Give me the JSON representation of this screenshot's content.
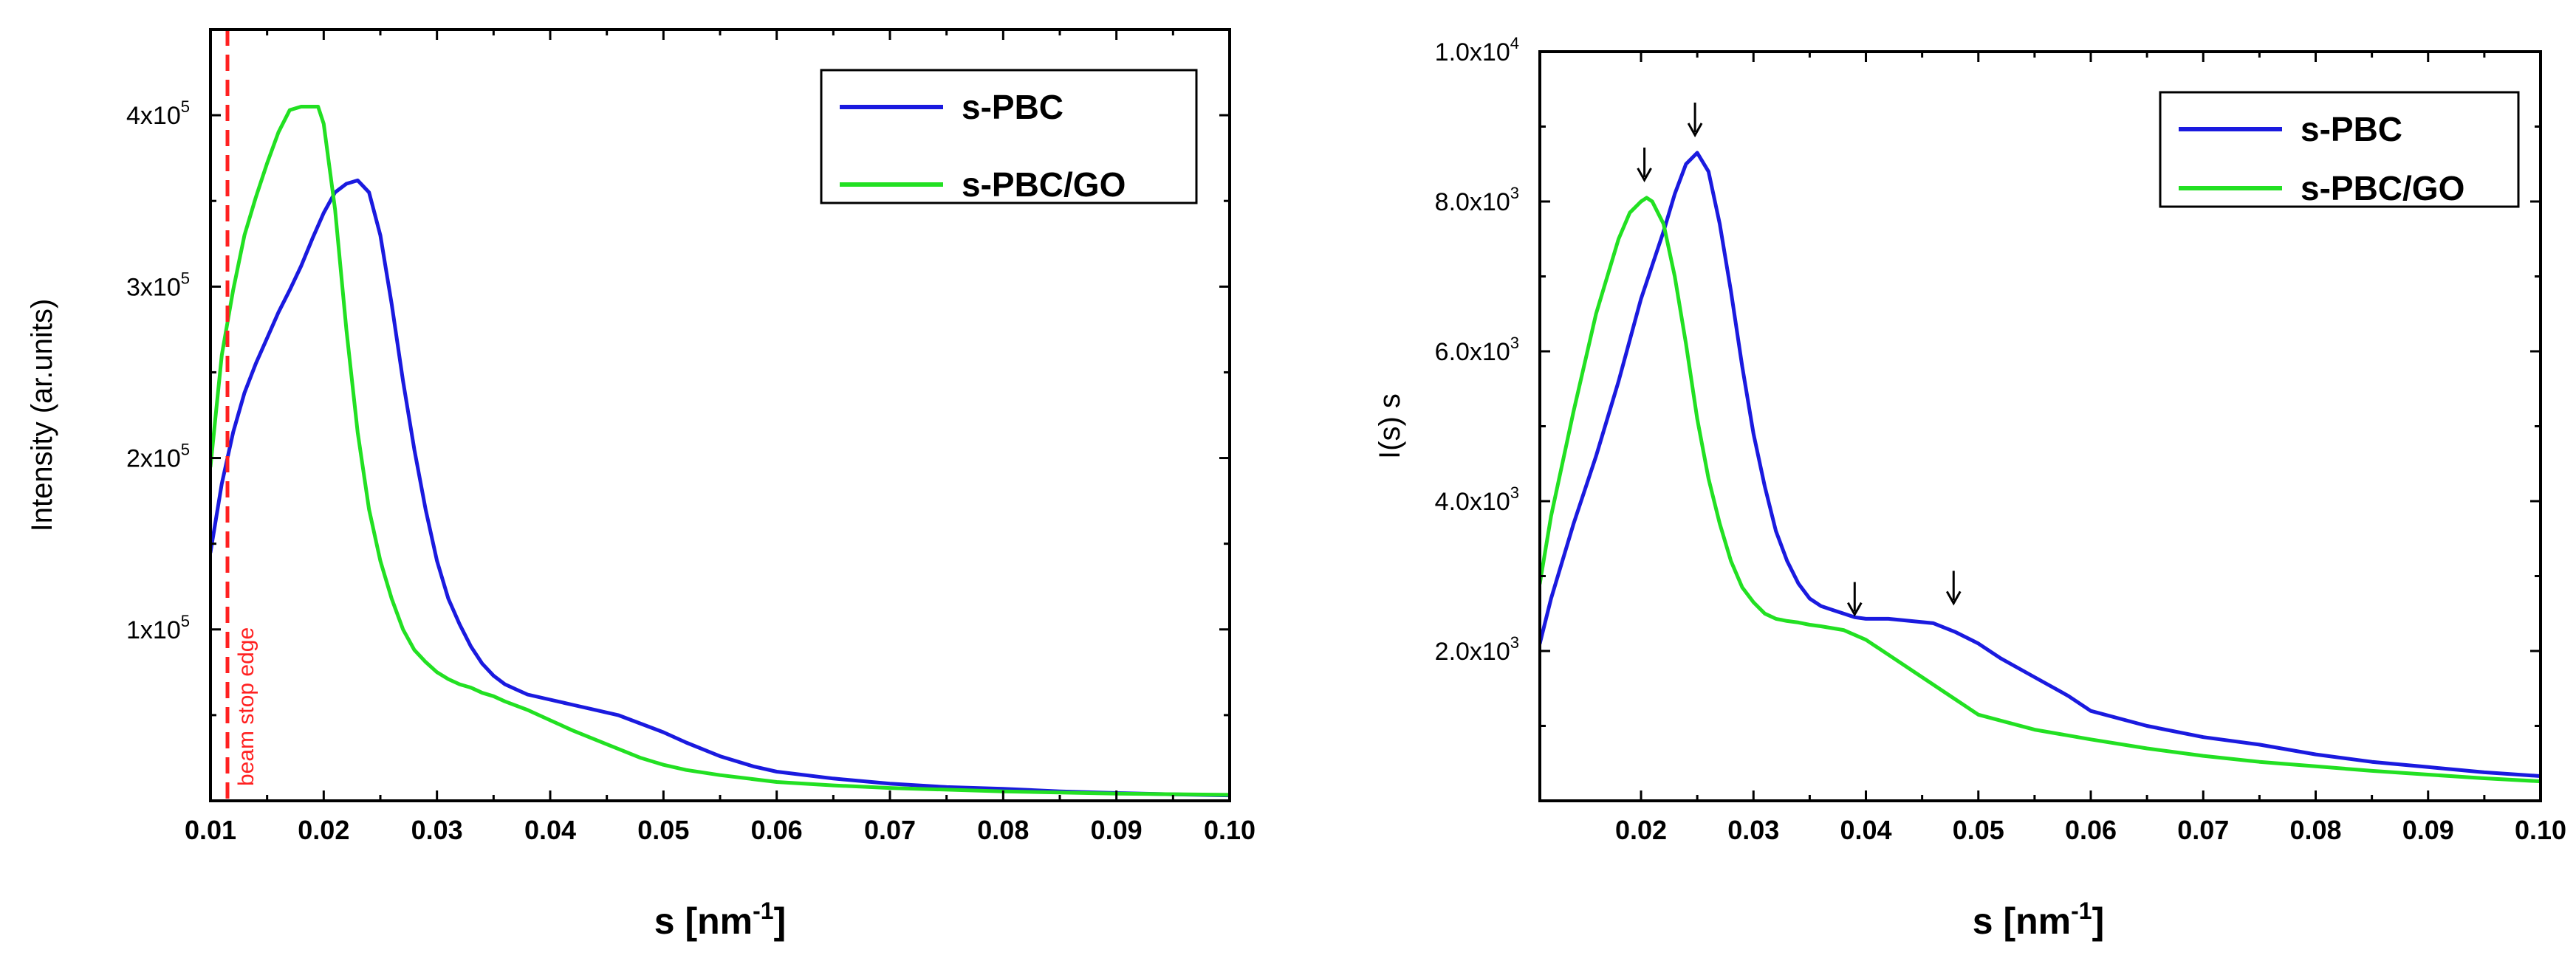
{
  "chart_data": [
    {
      "type": "line",
      "title": "",
      "xlabel": "s [nm",
      "xlabel_sup": "-1",
      "xlabel_end": "]",
      "ylabel": "Intensity (ar.units)",
      "xlim": [
        0.01,
        0.1
      ],
      "ylim": [
        0,
        450000
      ],
      "xticks": [
        0.01,
        0.02,
        0.03,
        0.04,
        0.05,
        0.06,
        0.07,
        0.08,
        0.09,
        0.1
      ],
      "xtick_labels": [
        "0.01",
        "0.02",
        "0.03",
        "0.04",
        "0.05",
        "0.06",
        "0.07",
        "0.08",
        "0.09",
        "0.10"
      ],
      "yticks": [
        100000,
        200000,
        300000,
        400000
      ],
      "ytick_labels": [
        {
          "base": "1x10",
          "exp": "5"
        },
        {
          "base": "2x10",
          "exp": "5"
        },
        {
          "base": "3x10",
          "exp": "5"
        },
        {
          "base": "4x10",
          "exp": "5"
        }
      ],
      "legend_position": "top-right",
      "annotations": [
        {
          "text": "beam stop edge",
          "x": 0.0115,
          "type": "vertical-dashed-line",
          "color": "#ff2020"
        }
      ],
      "series": [
        {
          "name": "s-PBC",
          "color": "#1a1adf",
          "x": [
            0.01,
            0.011,
            0.012,
            0.013,
            0.014,
            0.015,
            0.016,
            0.017,
            0.018,
            0.019,
            0.02,
            0.021,
            0.022,
            0.023,
            0.024,
            0.025,
            0.026,
            0.027,
            0.028,
            0.029,
            0.03,
            0.031,
            0.032,
            0.033,
            0.034,
            0.035,
            0.036,
            0.037,
            0.038,
            0.04,
            0.042,
            0.044,
            0.046,
            0.048,
            0.05,
            0.052,
            0.055,
            0.058,
            0.06,
            0.065,
            0.07,
            0.075,
            0.08,
            0.085,
            0.09,
            0.095,
            0.1
          ],
          "y": [
            145000,
            185000,
            215000,
            238000,
            255000,
            270000,
            285000,
            298000,
            312000,
            328000,
            343000,
            355000,
            360000,
            362000,
            355000,
            330000,
            290000,
            245000,
            205000,
            170000,
            140000,
            118000,
            103000,
            90000,
            80000,
            73000,
            68000,
            65000,
            62000,
            59000,
            56000,
            53000,
            50000,
            45000,
            40000,
            34000,
            26000,
            20000,
            17000,
            13000,
            10000,
            8000,
            7000,
            5500,
            4500,
            3800,
            3200
          ]
        },
        {
          "name": "s-PBC/GO",
          "color": "#22e022",
          "x": [
            0.01,
            0.011,
            0.012,
            0.013,
            0.014,
            0.015,
            0.016,
            0.017,
            0.018,
            0.019,
            0.0195,
            0.02,
            0.021,
            0.022,
            0.023,
            0.024,
            0.025,
            0.026,
            0.027,
            0.028,
            0.029,
            0.03,
            0.031,
            0.032,
            0.033,
            0.034,
            0.035,
            0.036,
            0.038,
            0.04,
            0.042,
            0.045,
            0.048,
            0.05,
            0.052,
            0.055,
            0.06,
            0.065,
            0.07,
            0.08,
            0.09,
            0.1
          ],
          "y": [
            195000,
            260000,
            298000,
            330000,
            352000,
            372000,
            390000,
            403000,
            405000,
            405000,
            405000,
            395000,
            345000,
            275000,
            215000,
            170000,
            140000,
            118000,
            100000,
            88000,
            81000,
            75000,
            71000,
            68000,
            66000,
            63000,
            61000,
            58000,
            53000,
            47000,
            41000,
            33000,
            25000,
            21000,
            18000,
            15000,
            11000,
            9000,
            7500,
            5500,
            4200,
            3500
          ]
        }
      ]
    },
    {
      "type": "line",
      "title": "",
      "xlabel": "s [nm",
      "xlabel_sup": "-1",
      "xlabel_end": "]",
      "ylabel": "I(s) s",
      "xlim": [
        0.011,
        0.1
      ],
      "ylim": [
        0,
        10000
      ],
      "xticks": [
        0.02,
        0.03,
        0.04,
        0.05,
        0.06,
        0.07,
        0.08,
        0.09,
        0.1
      ],
      "xtick_labels": [
        "0.02",
        "0.03",
        "0.04",
        "0.05",
        "0.06",
        "0.07",
        "0.08",
        "0.09",
        "0.10"
      ],
      "yticks": [
        2000,
        4000,
        6000,
        8000,
        10000
      ],
      "ytick_labels": [
        {
          "base": "2.0x10",
          "exp": "3"
        },
        {
          "base": "4.0x10",
          "exp": "3"
        },
        {
          "base": "6.0x10",
          "exp": "3"
        },
        {
          "base": "8.0x10",
          "exp": "3"
        },
        {
          "base": "1.0x10",
          "exp": "4"
        }
      ],
      "legend_position": "top-right",
      "annotations": [
        {
          "text": "↓",
          "x": 0.0203,
          "y": 8050,
          "type": "peak-arrow"
        },
        {
          "text": "↓",
          "x": 0.0248,
          "y": 8650,
          "type": "peak-arrow"
        },
        {
          "text": "↓",
          "x": 0.039,
          "y": 2250,
          "type": "peak-arrow"
        },
        {
          "text": "↓",
          "x": 0.0478,
          "y": 2400,
          "type": "peak-arrow"
        }
      ],
      "series": [
        {
          "name": "s-PBC",
          "color": "#1a1adf",
          "x": [
            0.011,
            0.012,
            0.014,
            0.016,
            0.018,
            0.02,
            0.022,
            0.023,
            0.024,
            0.025,
            0.026,
            0.027,
            0.028,
            0.029,
            0.03,
            0.031,
            0.032,
            0.033,
            0.034,
            0.035,
            0.036,
            0.037,
            0.038,
            0.039,
            0.04,
            0.042,
            0.044,
            0.046,
            0.048,
            0.05,
            0.052,
            0.055,
            0.058,
            0.06,
            0.065,
            0.07,
            0.075,
            0.08,
            0.085,
            0.09,
            0.095,
            0.1
          ],
          "y": [
            2100,
            2700,
            3700,
            4600,
            5600,
            6700,
            7600,
            8100,
            8500,
            8650,
            8400,
            7700,
            6800,
            5800,
            4900,
            4200,
            3600,
            3200,
            2900,
            2700,
            2600,
            2550,
            2500,
            2450,
            2430,
            2430,
            2400,
            2370,
            2250,
            2100,
            1900,
            1650,
            1400,
            1200,
            1000,
            850,
            750,
            620,
            520,
            450,
            380,
            330
          ]
        },
        {
          "name": "s-PBC/GO",
          "color": "#22e022",
          "x": [
            0.011,
            0.012,
            0.014,
            0.016,
            0.018,
            0.019,
            0.02,
            0.0205,
            0.021,
            0.022,
            0.023,
            0.024,
            0.025,
            0.026,
            0.027,
            0.028,
            0.029,
            0.03,
            0.031,
            0.032,
            0.033,
            0.034,
            0.035,
            0.036,
            0.038,
            0.04,
            0.042,
            0.045,
            0.048,
            0.05,
            0.055,
            0.06,
            0.065,
            0.07,
            0.075,
            0.08,
            0.085,
            0.09,
            0.095,
            0.1
          ],
          "y": [
            2900,
            3800,
            5200,
            6500,
            7500,
            7850,
            8000,
            8050,
            8000,
            7700,
            7000,
            6100,
            5100,
            4300,
            3700,
            3200,
            2850,
            2650,
            2500,
            2430,
            2400,
            2380,
            2350,
            2330,
            2280,
            2150,
            1950,
            1650,
            1350,
            1150,
            950,
            820,
            700,
            600,
            520,
            460,
            400,
            350,
            300,
            260
          ]
        }
      ]
    }
  ]
}
